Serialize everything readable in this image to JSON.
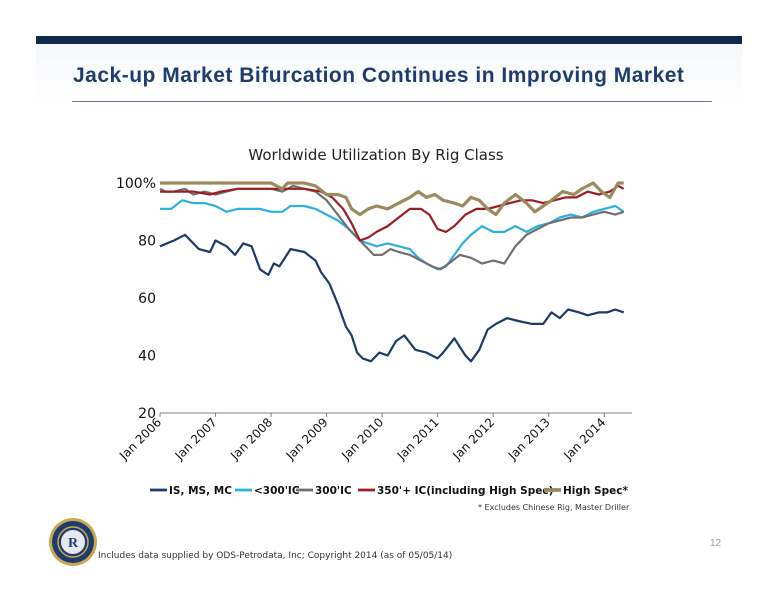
{
  "slide": {
    "title": "Jack-up Market Bifurcation Continues in Improving Market",
    "footnote": "* Excludes Chinese Rig, Master Driller",
    "source": "Includes data supplied by ODS-Petrodata, Inc; Copyright 2014 (as of 05/05/14)",
    "page_number": "12"
  },
  "logo": {
    "icon": "company-seal-icon",
    "letter": "R"
  },
  "chart_data": {
    "type": "line",
    "title": "Worldwide Utilization By Rig Class",
    "xlabel": "",
    "ylabel": "",
    "y_ticks": [
      "20",
      "40",
      "60",
      "80",
      "100%"
    ],
    "y_tick_values": [
      20,
      40,
      60,
      80,
      100
    ],
    "ylim": [
      20,
      100
    ],
    "xlim": [
      2006.0,
      2014.5
    ],
    "x_ticks": [
      "Jan 2006",
      "Jan 2007",
      "Jan 2008",
      "Jan 2009",
      "Jan 2010",
      "Jan 2011",
      "Jan 2012",
      "Jan 2013",
      "Jan 2014"
    ],
    "x_tick_values": [
      2006,
      2007,
      2008,
      2009,
      2010,
      2011,
      2012,
      2013,
      2014
    ],
    "grid": false,
    "legend_position": "bottom",
    "series": [
      {
        "name": "IS, MS, MC",
        "color": "#1c3a6a",
        "width": 2.2,
        "points": [
          [
            2006.0,
            78
          ],
          [
            2006.25,
            80
          ],
          [
            2006.45,
            82
          ],
          [
            2006.7,
            77
          ],
          [
            2006.9,
            76
          ],
          [
            2007.0,
            80
          ],
          [
            2007.2,
            78
          ],
          [
            2007.35,
            75
          ],
          [
            2007.5,
            79
          ],
          [
            2007.65,
            78
          ],
          [
            2007.8,
            70
          ],
          [
            2007.95,
            68
          ],
          [
            2008.05,
            72
          ],
          [
            2008.15,
            71
          ],
          [
            2008.35,
            77
          ],
          [
            2008.6,
            76
          ],
          [
            2008.8,
            73
          ],
          [
            2008.9,
            69
          ],
          [
            2009.05,
            65
          ],
          [
            2009.2,
            58
          ],
          [
            2009.35,
            50
          ],
          [
            2009.45,
            47
          ],
          [
            2009.55,
            41
          ],
          [
            2009.65,
            39
          ],
          [
            2009.8,
            38
          ],
          [
            2009.95,
            41
          ],
          [
            2010.1,
            40
          ],
          [
            2010.25,
            45
          ],
          [
            2010.4,
            47
          ],
          [
            2010.6,
            42
          ],
          [
            2010.8,
            41
          ],
          [
            2011.0,
            39
          ],
          [
            2011.1,
            41
          ],
          [
            2011.3,
            46
          ],
          [
            2011.5,
            40
          ],
          [
            2011.6,
            38
          ],
          [
            2011.75,
            42
          ],
          [
            2011.9,
            49
          ],
          [
            2012.05,
            51
          ],
          [
            2012.25,
            53
          ],
          [
            2012.45,
            52
          ],
          [
            2012.7,
            51
          ],
          [
            2012.9,
            51
          ],
          [
            2013.05,
            55
          ],
          [
            2013.2,
            53
          ],
          [
            2013.35,
            56
          ],
          [
            2013.55,
            55
          ],
          [
            2013.7,
            54
          ],
          [
            2013.9,
            55
          ],
          [
            2014.05,
            55
          ],
          [
            2014.2,
            56
          ],
          [
            2014.35,
            55
          ]
        ]
      },
      {
        "name": "<300'IC",
        "color": "#2bb0e0",
        "width": 2.2,
        "points": [
          [
            2006.0,
            91
          ],
          [
            2006.2,
            91
          ],
          [
            2006.4,
            94
          ],
          [
            2006.6,
            93
          ],
          [
            2006.8,
            93
          ],
          [
            2007.0,
            92
          ],
          [
            2007.2,
            90
          ],
          [
            2007.4,
            91
          ],
          [
            2007.6,
            91
          ],
          [
            2007.8,
            91
          ],
          [
            2008.0,
            90
          ],
          [
            2008.2,
            90
          ],
          [
            2008.35,
            92
          ],
          [
            2008.6,
            92
          ],
          [
            2008.8,
            91
          ],
          [
            2009.0,
            89
          ],
          [
            2009.2,
            87
          ],
          [
            2009.4,
            84
          ],
          [
            2009.6,
            80
          ],
          [
            2009.75,
            79
          ],
          [
            2009.9,
            78
          ],
          [
            2010.1,
            79
          ],
          [
            2010.3,
            78
          ],
          [
            2010.5,
            77
          ],
          [
            2010.65,
            74
          ],
          [
            2010.8,
            72
          ],
          [
            2011.0,
            70
          ],
          [
            2011.15,
            71
          ],
          [
            2011.3,
            75
          ],
          [
            2011.45,
            79
          ],
          [
            2011.6,
            82
          ],
          [
            2011.8,
            85
          ],
          [
            2012.0,
            83
          ],
          [
            2012.2,
            83
          ],
          [
            2012.4,
            85
          ],
          [
            2012.6,
            83
          ],
          [
            2012.8,
            85
          ],
          [
            2013.0,
            86
          ],
          [
            2013.2,
            88
          ],
          [
            2013.4,
            89
          ],
          [
            2013.6,
            88
          ],
          [
            2013.8,
            90
          ],
          [
            2014.0,
            91
          ],
          [
            2014.2,
            92
          ],
          [
            2014.35,
            90
          ]
        ]
      },
      {
        "name": "300'IC",
        "color": "#707070",
        "width": 2.2,
        "points": [
          [
            2006.0,
            98
          ],
          [
            2006.1,
            97
          ],
          [
            2006.25,
            97
          ],
          [
            2006.45,
            98
          ],
          [
            2006.6,
            96
          ],
          [
            2006.8,
            97
          ],
          [
            2007.0,
            96
          ],
          [
            2007.2,
            97
          ],
          [
            2007.4,
            98
          ],
          [
            2007.6,
            98
          ],
          [
            2007.8,
            98
          ],
          [
            2008.0,
            98
          ],
          [
            2008.2,
            97
          ],
          [
            2008.4,
            99
          ],
          [
            2008.6,
            98
          ],
          [
            2008.8,
            97
          ],
          [
            2009.0,
            94
          ],
          [
            2009.2,
            89
          ],
          [
            2009.4,
            84
          ],
          [
            2009.55,
            81
          ],
          [
            2009.7,
            78
          ],
          [
            2009.85,
            75
          ],
          [
            2010.0,
            75
          ],
          [
            2010.15,
            77
          ],
          [
            2010.3,
            76
          ],
          [
            2010.5,
            75
          ],
          [
            2010.7,
            73
          ],
          [
            2010.9,
            71
          ],
          [
            2011.05,
            70
          ],
          [
            2011.2,
            72
          ],
          [
            2011.4,
            75
          ],
          [
            2011.6,
            74
          ],
          [
            2011.8,
            72
          ],
          [
            2012.0,
            73
          ],
          [
            2012.2,
            72
          ],
          [
            2012.4,
            78
          ],
          [
            2012.6,
            82
          ],
          [
            2012.8,
            84
          ],
          [
            2013.0,
            86
          ],
          [
            2013.2,
            87
          ],
          [
            2013.4,
            88
          ],
          [
            2013.6,
            88
          ],
          [
            2013.8,
            89
          ],
          [
            2014.0,
            90
          ],
          [
            2014.2,
            89
          ],
          [
            2014.35,
            90
          ]
        ]
      },
      {
        "name": "350'+ IC(including High Spec)",
        "color": "#9e1b22",
        "width": 2.2,
        "points": [
          [
            2006.0,
            97
          ],
          [
            2006.3,
            97
          ],
          [
            2006.6,
            97
          ],
          [
            2006.9,
            96
          ],
          [
            2007.1,
            97
          ],
          [
            2007.4,
            98
          ],
          [
            2007.7,
            98
          ],
          [
            2008.0,
            98
          ],
          [
            2008.3,
            98
          ],
          [
            2008.6,
            98
          ],
          [
            2008.9,
            97
          ],
          [
            2009.1,
            95
          ],
          [
            2009.3,
            91
          ],
          [
            2009.45,
            86
          ],
          [
            2009.6,
            80
          ],
          [
            2009.75,
            81
          ],
          [
            2009.9,
            83
          ],
          [
            2010.1,
            85
          ],
          [
            2010.3,
            88
          ],
          [
            2010.5,
            91
          ],
          [
            2010.7,
            91
          ],
          [
            2010.85,
            89
          ],
          [
            2011.0,
            84
          ],
          [
            2011.15,
            83
          ],
          [
            2011.3,
            85
          ],
          [
            2011.5,
            89
          ],
          [
            2011.7,
            91
          ],
          [
            2011.9,
            91
          ],
          [
            2012.1,
            92
          ],
          [
            2012.3,
            93
          ],
          [
            2012.5,
            94
          ],
          [
            2012.7,
            94
          ],
          [
            2012.9,
            93
          ],
          [
            2013.1,
            94
          ],
          [
            2013.3,
            95
          ],
          [
            2013.5,
            95
          ],
          [
            2013.7,
            97
          ],
          [
            2013.9,
            96
          ],
          [
            2014.1,
            97
          ],
          [
            2014.25,
            99
          ],
          [
            2014.35,
            98
          ]
        ]
      },
      {
        "name": "High Spec*",
        "color": "#9a8b5e",
        "width": 3.2,
        "points": [
          [
            2006.0,
            100
          ],
          [
            2006.4,
            100
          ],
          [
            2006.8,
            100
          ],
          [
            2007.2,
            100
          ],
          [
            2007.6,
            100
          ],
          [
            2008.0,
            100
          ],
          [
            2008.2,
            98
          ],
          [
            2008.3,
            100
          ],
          [
            2008.6,
            100
          ],
          [
            2008.8,
            99
          ],
          [
            2009.0,
            96
          ],
          [
            2009.2,
            96
          ],
          [
            2009.35,
            95
          ],
          [
            2009.45,
            91
          ],
          [
            2009.6,
            89
          ],
          [
            2009.75,
            91
          ],
          [
            2009.9,
            92
          ],
          [
            2010.1,
            91
          ],
          [
            2010.3,
            93
          ],
          [
            2010.5,
            95
          ],
          [
            2010.65,
            97
          ],
          [
            2010.8,
            95
          ],
          [
            2010.95,
            96
          ],
          [
            2011.1,
            94
          ],
          [
            2011.3,
            93
          ],
          [
            2011.45,
            92
          ],
          [
            2011.6,
            95
          ],
          [
            2011.75,
            94
          ],
          [
            2011.9,
            91
          ],
          [
            2012.05,
            89
          ],
          [
            2012.2,
            93
          ],
          [
            2012.4,
            96
          ],
          [
            2012.6,
            93
          ],
          [
            2012.75,
            90
          ],
          [
            2012.9,
            92
          ],
          [
            2013.05,
            94
          ],
          [
            2013.25,
            97
          ],
          [
            2013.45,
            96
          ],
          [
            2013.6,
            98
          ],
          [
            2013.8,
            100
          ],
          [
            2013.95,
            97
          ],
          [
            2014.1,
            95
          ],
          [
            2014.25,
            100
          ],
          [
            2014.35,
            100
          ]
        ]
      }
    ]
  }
}
